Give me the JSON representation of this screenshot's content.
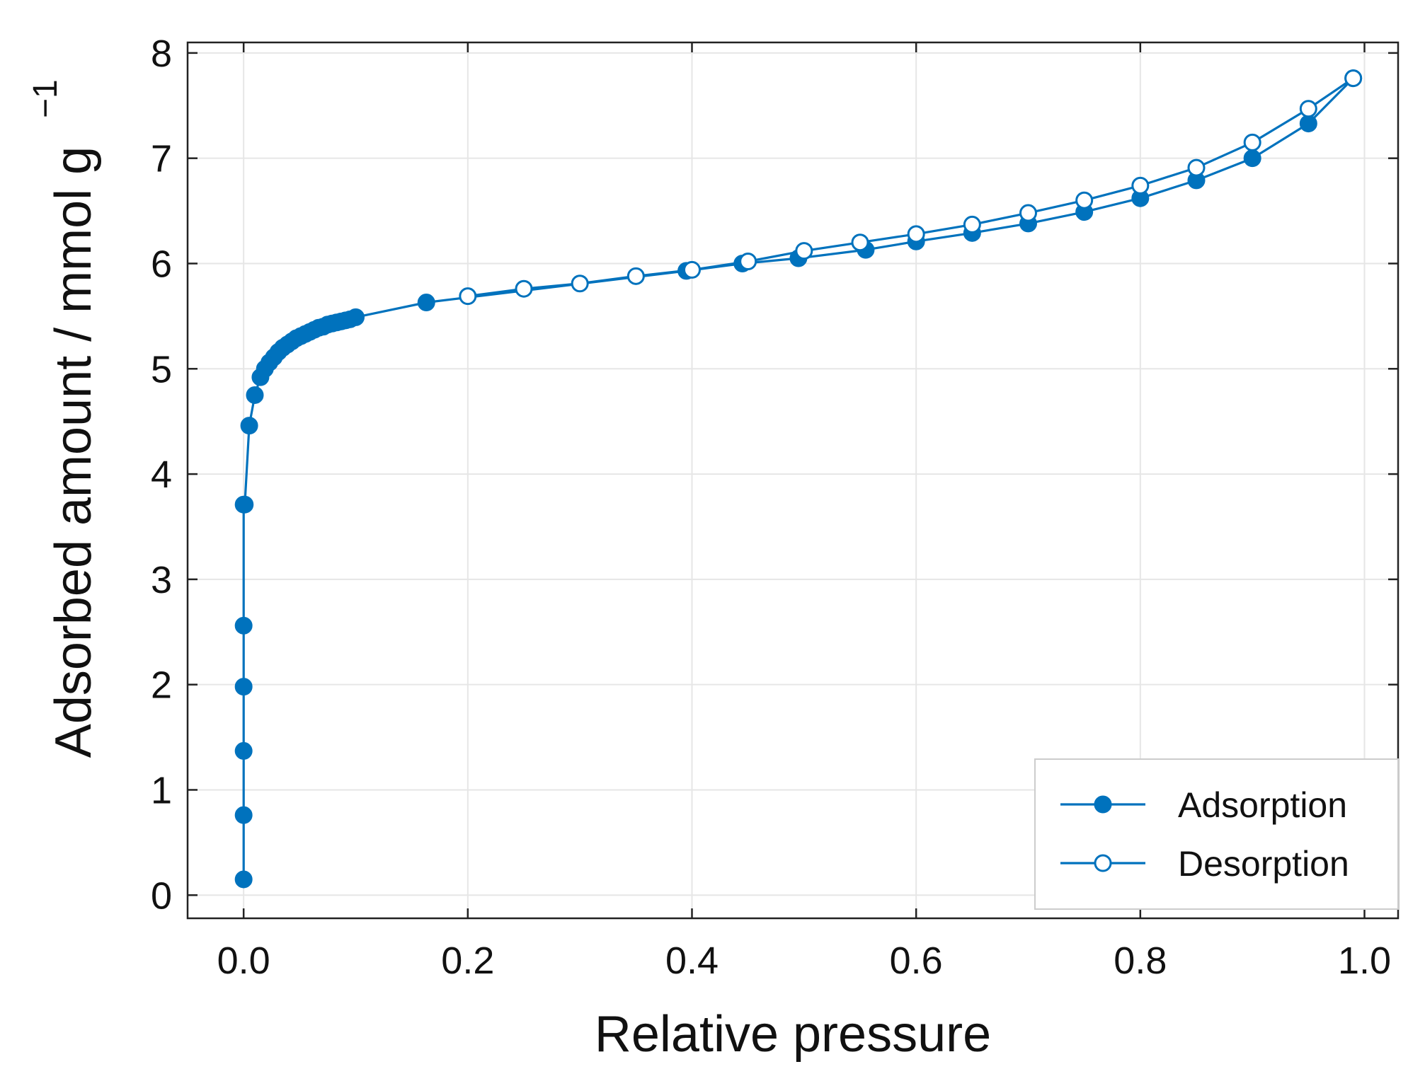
{
  "chart_data": {
    "type": "line",
    "title": "",
    "xlabel": "Relative pressure",
    "ylabel": "Adsorbed amount / mmol g",
    "ylabel_superscript": "−1",
    "xlim": [
      -0.05,
      1.03
    ],
    "ylim": [
      -0.22,
      8.1
    ],
    "xticks": [
      0.0,
      0.2,
      0.4,
      0.6,
      0.8,
      1.0
    ],
    "xtick_labels": [
      "0.0",
      "0.2",
      "0.4",
      "0.6",
      "0.8",
      "1.0"
    ],
    "yticks": [
      0,
      1,
      2,
      3,
      4,
      5,
      6,
      7,
      8
    ],
    "ytick_labels": [
      "0",
      "1",
      "2",
      "3",
      "4",
      "5",
      "6",
      "7",
      "8"
    ],
    "grid": true,
    "legend_position": "bottom-right",
    "color": "#0072bd",
    "series": [
      {
        "name": "Adsorption",
        "marker": "filled-circle",
        "x": [
          0.0,
          0.0,
          0.0,
          0.0,
          0.0,
          0.0,
          0.001,
          0.005,
          0.01,
          0.015,
          0.019,
          0.023,
          0.027,
          0.031,
          0.035,
          0.039,
          0.043,
          0.047,
          0.051,
          0.055,
          0.059,
          0.063,
          0.067,
          0.071,
          0.075,
          0.079,
          0.083,
          0.087,
          0.091,
          0.095,
          0.1,
          0.163,
          0.395,
          0.445,
          0.495,
          0.555,
          0.6,
          0.65,
          0.7,
          0.75,
          0.8,
          0.85,
          0.9,
          0.95,
          0.99
        ],
        "y": [
          0.15,
          0.76,
          1.37,
          1.98,
          2.56,
          3.71,
          3.71,
          4.46,
          4.75,
          4.92,
          5.0,
          5.06,
          5.11,
          5.16,
          5.2,
          5.23,
          5.26,
          5.29,
          5.31,
          5.33,
          5.35,
          5.37,
          5.39,
          5.4,
          5.42,
          5.43,
          5.44,
          5.45,
          5.46,
          5.47,
          5.49,
          5.63,
          5.93,
          6.0,
          6.05,
          6.13,
          6.21,
          6.29,
          6.38,
          6.49,
          6.62,
          6.79,
          7.0,
          7.33,
          7.76
        ]
      },
      {
        "name": "Desorption",
        "marker": "open-circle",
        "x": [
          0.99,
          0.95,
          0.9,
          0.85,
          0.8,
          0.75,
          0.7,
          0.65,
          0.6,
          0.55,
          0.5,
          0.45,
          0.4,
          0.35,
          0.3,
          0.25,
          0.2
        ],
        "y": [
          7.76,
          7.47,
          7.15,
          6.91,
          6.74,
          6.6,
          6.48,
          6.37,
          6.28,
          6.2,
          6.12,
          6.02,
          5.94,
          5.88,
          5.81,
          5.76,
          5.69
        ]
      }
    ]
  }
}
